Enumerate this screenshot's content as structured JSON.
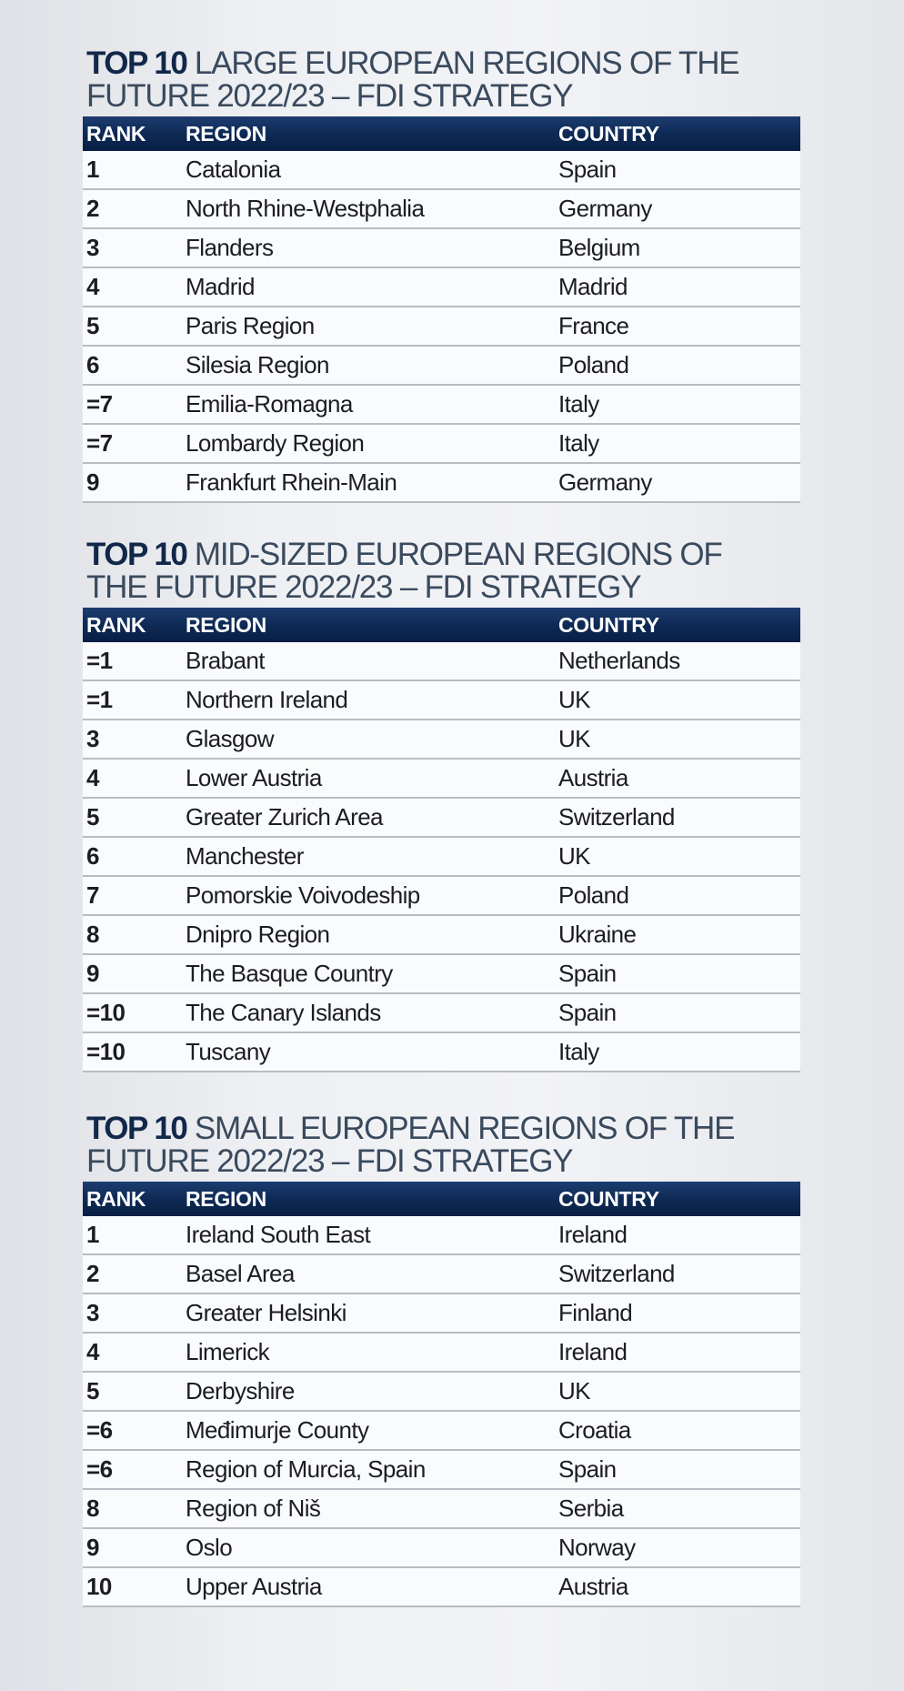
{
  "headers": {
    "rank": "RANK",
    "region": "REGION",
    "country": "COUNTRY"
  },
  "tables": [
    {
      "title_lead": "TOP 10",
      "title_line1": "LARGE EUROPEAN REGIONS OF THE",
      "title_line2": "FUTURE 2022/23 – FDI STRATEGY",
      "rows": [
        {
          "rank": "1",
          "region": "Catalonia",
          "country": "Spain"
        },
        {
          "rank": "2",
          "region": "North Rhine-Westphalia",
          "country": "Germany"
        },
        {
          "rank": "3",
          "region": "Flanders",
          "country": "Belgium"
        },
        {
          "rank": "4",
          "region": "Madrid",
          "country": "Madrid"
        },
        {
          "rank": "5",
          "region": "Paris Region",
          "country": "France"
        },
        {
          "rank": "6",
          "region": "Silesia Region",
          "country": "Poland"
        },
        {
          "rank": "=7",
          "region": "Emilia-Romagna",
          "country": "Italy"
        },
        {
          "rank": "=7",
          "region": "Lombardy Region",
          "country": "Italy"
        },
        {
          "rank": "9",
          "region": "Frankfurt Rhein-Main",
          "country": "Germany"
        }
      ]
    },
    {
      "title_lead": "TOP 10",
      "title_line1": "MID-SIZED EUROPEAN REGIONS OF",
      "title_line2": "THE FUTURE 2022/23 – FDI STRATEGY",
      "rows": [
        {
          "rank": "=1",
          "region": "Brabant",
          "country": "Netherlands"
        },
        {
          "rank": "=1",
          "region": "Northern Ireland",
          "country": "UK"
        },
        {
          "rank": "3",
          "region": "Glasgow",
          "country": "UK"
        },
        {
          "rank": "4",
          "region": "Lower Austria",
          "country": "Austria"
        },
        {
          "rank": "5",
          "region": "Greater Zurich Area",
          "country": "Switzerland"
        },
        {
          "rank": "6",
          "region": "Manchester",
          "country": "UK"
        },
        {
          "rank": "7",
          "region": "Pomorskie Voivodeship",
          "country": "Poland"
        },
        {
          "rank": "8",
          "region": "Dnipro Region",
          "country": "Ukraine"
        },
        {
          "rank": "9",
          "region": "The Basque Country",
          "country": "Spain"
        },
        {
          "rank": "=10",
          "region": "The Canary Islands",
          "country": "Spain"
        },
        {
          "rank": "=10",
          "region": "Tuscany",
          "country": "Italy"
        }
      ]
    },
    {
      "title_lead": "TOP 10",
      "title_line1": "SMALL EUROPEAN REGIONS OF THE",
      "title_line2": "FUTURE 2022/23 – FDI STRATEGY",
      "rows": [
        {
          "rank": "1",
          "region": "Ireland South East",
          "country": "Ireland"
        },
        {
          "rank": "2",
          "region": "Basel Area",
          "country": "Switzerland"
        },
        {
          "rank": "3",
          "region": "Greater Helsinki",
          "country": "Finland"
        },
        {
          "rank": "4",
          "region": "Limerick",
          "country": "Ireland"
        },
        {
          "rank": "5",
          "region": "Derbyshire",
          "country": "UK"
        },
        {
          "rank": "=6",
          "region": "Međimurje County",
          "country": "Croatia"
        },
        {
          "rank": "=6",
          "region": "Region of Murcia, Spain",
          "country": "Spain"
        },
        {
          "rank": "8",
          "region": "Region of Niš",
          "country": "Serbia"
        },
        {
          "rank": "9",
          "region": "Oslo",
          "country": "Norway"
        },
        {
          "rank": "10",
          "region": "Upper Austria",
          "country": "Austria"
        }
      ]
    }
  ]
}
